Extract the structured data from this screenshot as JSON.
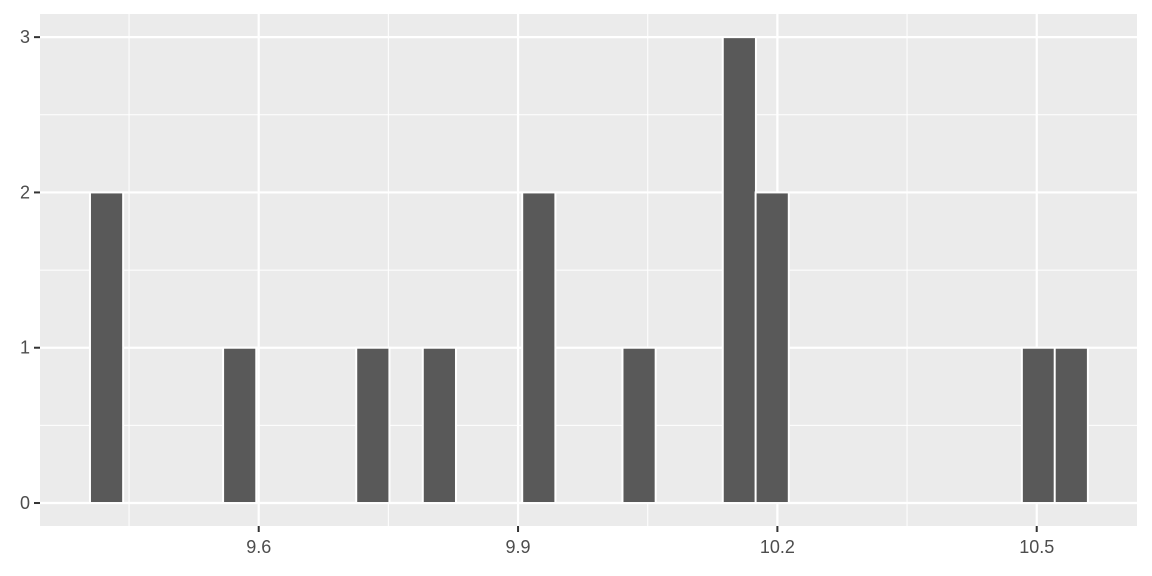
{
  "chart_data": {
    "type": "bar",
    "subtype": "histogram",
    "title": "",
    "xlabel": "",
    "ylabel": "",
    "binwidth": 0.0384,
    "bins": [
      {
        "x": 9.424,
        "count": 2
      },
      {
        "x": 9.578,
        "count": 1
      },
      {
        "x": 9.732,
        "count": 1
      },
      {
        "x": 9.809,
        "count": 1
      },
      {
        "x": 9.924,
        "count": 2
      },
      {
        "x": 10.04,
        "count": 1
      },
      {
        "x": 10.156,
        "count": 3
      },
      {
        "x": 10.194,
        "count": 2
      },
      {
        "x": 10.502,
        "count": 1
      },
      {
        "x": 10.54,
        "count": 1
      }
    ],
    "xlim": [
      9.347,
      10.616
    ],
    "ylim": [
      -0.148,
      3.149
    ],
    "xticks": [
      9.6,
      9.9,
      10.2,
      10.5
    ],
    "xtick_labels": [
      "9.6",
      "9.9",
      "10.2",
      "10.5"
    ],
    "xminor": [
      9.45,
      9.75,
      10.05,
      10.35
    ],
    "yticks": [
      0,
      1,
      2,
      3
    ],
    "ytick_labels": [
      "0",
      "1",
      "2",
      "3"
    ],
    "yminor": [
      0.5,
      1.5,
      2.5
    ],
    "grid": true,
    "colors": {
      "panel": "#EBEBEB",
      "bar_fill": "#595959",
      "bar_outline": "#FFFFFF",
      "grid": "#FFFFFF",
      "text": "#4D4D4D"
    }
  }
}
